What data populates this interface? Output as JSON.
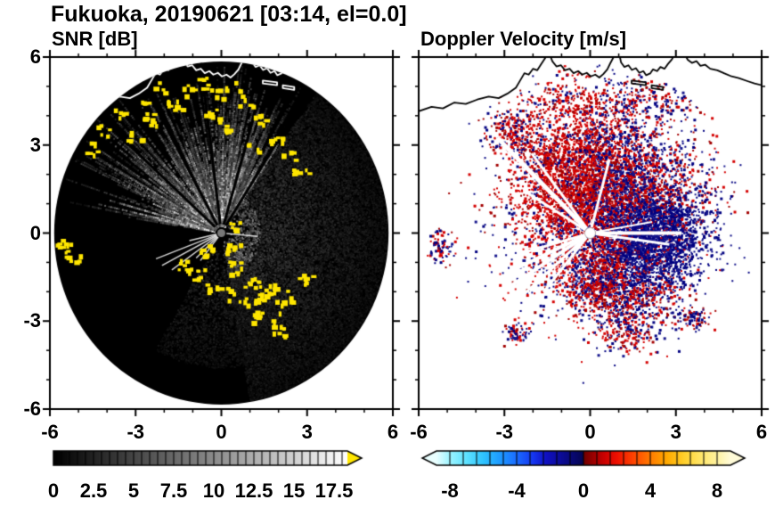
{
  "title": "Fukuoka, 20190621 [03:14, el=0.0]",
  "panels": {
    "snr": {
      "title": "SNR [dB]",
      "xtick_labels": [
        "-6",
        "-3",
        "0",
        "3",
        "6"
      ],
      "ytick_labels": [
        "6",
        "3",
        "0",
        "-3",
        "-6"
      ]
    },
    "velocity": {
      "title": "Doppler Velocity [m/s]",
      "xtick_labels": [
        "-6",
        "-3",
        "0",
        "3",
        "6"
      ],
      "ytick_labels": [
        "6",
        "3",
        "0",
        "-3",
        "-6"
      ]
    }
  },
  "colorbars": {
    "snr": {
      "tick_labels": [
        "0",
        "2.5",
        "5",
        "7.5",
        "10",
        "12.5",
        "15",
        "17.5"
      ],
      "tick_values": [
        0,
        2.5,
        5,
        7.5,
        10,
        12.5,
        15,
        17.5
      ],
      "range": [
        0,
        18.33
      ],
      "stops": [
        [
          0,
          "#000000"
        ],
        [
          18.33,
          "#ffffff"
        ]
      ],
      "over_arrow_color": "#ffe600"
    },
    "velocity": {
      "tick_labels": [
        "-8",
        "-4",
        "0",
        "4",
        "8"
      ],
      "tick_values": [
        -8,
        -4,
        0,
        4,
        8
      ],
      "range": [
        -8.8,
        8.8
      ],
      "stops": [
        [
          -8.8,
          "#eaffff"
        ],
        [
          -8,
          "#9cf4ff"
        ],
        [
          -7,
          "#5ee2ff"
        ],
        [
          -6,
          "#2fc4ff"
        ],
        [
          -5,
          "#1e9bff"
        ],
        [
          -4,
          "#1b6cff"
        ],
        [
          -3,
          "#1536f0"
        ],
        [
          -2.2,
          "#1010c0"
        ],
        [
          -1.2,
          "#0b0b90"
        ],
        [
          -0.3,
          "#070760"
        ],
        [
          -0.02,
          "#060650"
        ],
        [
          0.02,
          "#700000"
        ],
        [
          0.6,
          "#9c0000"
        ],
        [
          1.2,
          "#c80000"
        ],
        [
          2,
          "#ee1000"
        ],
        [
          3,
          "#ff4400"
        ],
        [
          4,
          "#ff7a00"
        ],
        [
          5,
          "#ffaa00"
        ],
        [
          6,
          "#ffcf2a"
        ],
        [
          7,
          "#ffe566"
        ],
        [
          8,
          "#fff3a0"
        ],
        [
          8.8,
          "#fffbd8"
        ]
      ],
      "under_arrow_color": "#eaffff",
      "over_arrow_color": "#fffbd8"
    }
  },
  "coastline": {
    "main": [
      [
        -6.0,
        4.15
      ],
      [
        -5.55,
        4.3
      ],
      [
        -5.15,
        4.25
      ],
      [
        -4.75,
        4.45
      ],
      [
        -4.35,
        4.4
      ],
      [
        -3.95,
        4.55
      ],
      [
        -3.55,
        4.65
      ],
      [
        -3.2,
        4.6
      ],
      [
        -2.9,
        4.75
      ],
      [
        -2.6,
        4.95
      ],
      [
        -2.45,
        5.2
      ],
      [
        -2.3,
        5.45
      ],
      [
        -2.15,
        5.4
      ],
      [
        -2.0,
        5.6
      ],
      [
        -1.85,
        5.55
      ],
      [
        -1.7,
        5.78
      ],
      [
        -1.55,
        6.0
      ],
      [
        -1.42,
        6.1
      ],
      [
        -1.32,
        5.85
      ],
      [
        -1.18,
        5.68
      ],
      [
        -1.02,
        5.72
      ],
      [
        -0.88,
        5.55
      ],
      [
        -0.72,
        5.6
      ],
      [
        -0.58,
        5.45
      ],
      [
        -0.42,
        5.52
      ],
      [
        -0.28,
        5.4
      ],
      [
        -0.12,
        5.46
      ],
      [
        0.02,
        5.34
      ],
      [
        0.18,
        5.4
      ],
      [
        0.32,
        5.3
      ],
      [
        0.46,
        5.42
      ],
      [
        0.6,
        5.58
      ],
      [
        0.7,
        5.78
      ],
      [
        0.82,
        6.0
      ],
      [
        0.9,
        6.1
      ]
    ],
    "harbor": [
      [
        1.02,
        6.1
      ],
      [
        1.08,
        5.82
      ],
      [
        1.2,
        5.66
      ],
      [
        1.34,
        5.72
      ],
      [
        1.46,
        5.56
      ],
      [
        1.6,
        5.62
      ],
      [
        1.72,
        5.46
      ],
      [
        1.86,
        5.52
      ],
      [
        1.96,
        5.38
      ],
      [
        2.1,
        5.44
      ],
      [
        2.2,
        5.58
      ],
      [
        2.34,
        5.52
      ],
      [
        2.46,
        5.66
      ],
      [
        2.6,
        5.6
      ],
      [
        2.72,
        5.76
      ],
      [
        2.86,
        5.92
      ],
      [
        2.96,
        6.1
      ]
    ],
    "right_coast": [
      [
        3.3,
        6.1
      ],
      [
        3.42,
        5.9
      ],
      [
        3.56,
        5.8
      ],
      [
        3.72,
        5.86
      ],
      [
        3.86,
        5.7
      ],
      [
        4.02,
        5.74
      ],
      [
        4.2,
        5.6
      ],
      [
        4.45,
        5.55
      ],
      [
        4.7,
        5.44
      ],
      [
        4.95,
        5.34
      ],
      [
        5.2,
        5.28
      ],
      [
        5.5,
        5.18
      ],
      [
        5.75,
        5.1
      ],
      [
        6.0,
        5.04
      ]
    ],
    "islets": [
      [
        [
          1.45,
          5.2
        ],
        [
          1.95,
          5.14
        ],
        [
          1.95,
          5.04
        ],
        [
          1.45,
          5.1
        ]
      ],
      [
        [
          2.15,
          5.04
        ],
        [
          2.55,
          4.98
        ],
        [
          2.55,
          4.88
        ],
        [
          2.15,
          4.94
        ]
      ]
    ]
  },
  "chart_data": [
    {
      "type": "heatmap",
      "title": "SNR [dB]",
      "xlim": [
        -6,
        6
      ],
      "ylim": [
        -6,
        6
      ],
      "xticks": [
        -6,
        -3,
        0,
        3,
        6
      ],
      "yticks": [
        -6,
        -3,
        0,
        3,
        6
      ],
      "grid": false,
      "colorbar": {
        "ticks": [
          0,
          2.5,
          5,
          7.5,
          10,
          12.5,
          15,
          17.5
        ],
        "range": [
          0,
          18.33
        ],
        "colormap": "grayscale-black-to-white",
        "over_color": "#ffe600"
      },
      "content": {
        "disk": {
          "center": [
            0,
            0
          ],
          "radius": 5.85,
          "fill": "#000000"
        },
        "bright_fan": {
          "a0": 55,
          "a1": 170,
          "rays": 280
        },
        "haze_fan": {
          "a0": -80,
          "a1": 55,
          "dots": 16000
        },
        "lower_fan": {
          "a0": 240,
          "a1": 300,
          "dots": 2600
        },
        "dark_spokes_deg": [
          58,
          74,
          97,
          118,
          137
        ],
        "bright_spokes_deg": [
          193,
          201,
          208,
          216,
          224,
          232,
          355
        ],
        "clutter_color": "#ffe600",
        "clutter_clusters": [
          [
            -2.2,
            5.0
          ],
          [
            -2.8,
            4.55
          ],
          [
            -3.5,
            4.15
          ],
          [
            -4.1,
            3.5
          ],
          [
            -1.7,
            4.4
          ],
          [
            -1.2,
            4.85
          ],
          [
            -2.5,
            3.9
          ],
          [
            -3.1,
            3.3
          ],
          [
            -4.5,
            2.9
          ],
          [
            -0.6,
            5.15
          ],
          [
            -0.1,
            4.75
          ],
          [
            0.4,
            5.05
          ],
          [
            0.85,
            4.5
          ],
          [
            -0.35,
            4.1
          ],
          [
            0.1,
            3.6
          ],
          [
            1.3,
            3.9
          ],
          [
            1.85,
            3.3
          ],
          [
            2.3,
            2.75
          ],
          [
            2.75,
            2.25
          ],
          [
            1.05,
            2.9
          ],
          [
            -5.55,
            -0.35
          ],
          [
            -5.25,
            -0.75
          ],
          [
            -1.35,
            -1.0
          ],
          [
            -0.9,
            -1.4
          ],
          [
            -0.4,
            -1.75
          ],
          [
            0.15,
            -2.05
          ],
          [
            0.7,
            -2.3
          ],
          [
            1.3,
            -2.2
          ],
          [
            1.9,
            -2.45
          ],
          [
            2.45,
            -2.1
          ],
          [
            2.9,
            -1.5
          ],
          [
            0.5,
            -1.15
          ],
          [
            1.05,
            -1.6
          ],
          [
            1.6,
            -1.85
          ],
          [
            1.15,
            -2.85
          ],
          [
            1.75,
            -3.15
          ],
          [
            2.2,
            -3.35
          ],
          [
            0.35,
            -0.55
          ],
          [
            -0.5,
            -0.6
          ],
          [
            0.55,
            0.2
          ]
        ]
      }
    },
    {
      "type": "heatmap",
      "title": "Doppler Velocity [m/s]",
      "xlim": [
        -6,
        6
      ],
      "ylim": [
        -6,
        6
      ],
      "xticks": [
        -6,
        -3,
        0,
        3,
        6
      ],
      "yticks": [
        -6,
        -3,
        0,
        3,
        6
      ],
      "grid": false,
      "colorbar": {
        "ticks": [
          -8,
          -4,
          0,
          4,
          8
        ],
        "range": [
          -8.8,
          8.8
        ],
        "colormap": "diverging-cyan-blue-navy-darkred-red-yellow-white",
        "under_color": "#eaffff",
        "over_color": "#fffbd8"
      },
      "content": {
        "positive_colors": [
          "#d40000",
          "#a20000"
        ],
        "negative_colors": [
          "#000080",
          "#15158c"
        ],
        "regions": [
          {
            "cx": 0.7,
            "cy": 0.7,
            "sx": 1.6,
            "sy": 1.5,
            "n": 5200,
            "blue": 0.45
          },
          {
            "cx": 2.2,
            "cy": -0.1,
            "sx": 0.9,
            "sy": 0.9,
            "n": 1500,
            "blue": 0.8
          },
          {
            "cx": -0.6,
            "cy": 1.8,
            "sx": 0.9,
            "sy": 0.9,
            "n": 900,
            "blue": 0.25
          },
          {
            "cx": 0.3,
            "cy": 3.2,
            "sx": 1.4,
            "sy": 0.9,
            "n": 700,
            "blue": 0.45
          },
          {
            "cx": -2.7,
            "cy": 3.5,
            "sx": 0.5,
            "sy": 0.5,
            "n": 260,
            "blue": 0.5
          },
          {
            "cx": -1.8,
            "cy": 2.6,
            "sx": 0.4,
            "sy": 0.4,
            "n": 120,
            "blue": 0.4
          },
          {
            "cx": 1.4,
            "cy": -2.2,
            "sx": 0.8,
            "sy": 0.7,
            "n": 600,
            "blue": 0.5
          },
          {
            "cx": 0.2,
            "cy": -1.6,
            "sx": 0.6,
            "sy": 0.5,
            "n": 400,
            "blue": 0.3
          },
          {
            "cx": -5.3,
            "cy": -0.4,
            "sx": 0.25,
            "sy": 0.3,
            "n": 90,
            "blue": 0.5
          },
          {
            "cx": -2.6,
            "cy": -3.35,
            "sx": 0.3,
            "sy": 0.2,
            "n": 70,
            "blue": 0.5
          },
          {
            "cx": 3.6,
            "cy": -2.85,
            "sx": 0.3,
            "sy": 0.2,
            "n": 80,
            "blue": 0.6
          },
          {
            "cx": 2.0,
            "cy": 4.6,
            "sx": 1.2,
            "sy": 0.4,
            "n": 220,
            "blue": 0.5
          },
          {
            "cx": -0.8,
            "cy": 4.6,
            "sx": 0.8,
            "sy": 0.4,
            "n": 150,
            "blue": 0.4
          },
          {
            "cx": 1.0,
            "cy": -3.4,
            "sx": 0.5,
            "sy": 0.3,
            "n": 120,
            "blue": 0.4
          }
        ],
        "white_spokes": [
          [
            135,
            4.6,
            5
          ],
          [
            127,
            3.4,
            3
          ],
          [
            148,
            2.6,
            3
          ],
          [
            196,
            2.4,
            3
          ],
          [
            205,
            3.0,
            4
          ],
          [
            213,
            3.4,
            4
          ],
          [
            222,
            3.6,
            3
          ],
          [
            231,
            2.6,
            3
          ],
          [
            0,
            3.2,
            4
          ],
          [
            352,
            2.8,
            3
          ],
          [
            10,
            2.2,
            2
          ],
          [
            75,
            2.6,
            3
          ]
        ]
      }
    }
  ]
}
